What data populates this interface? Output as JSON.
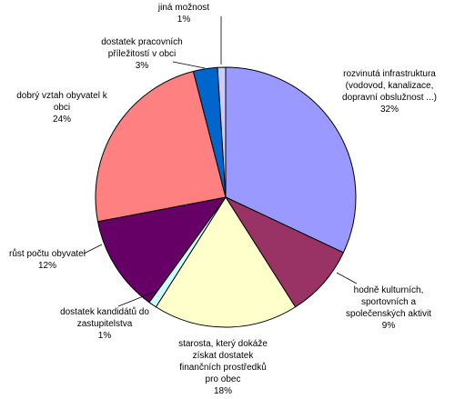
{
  "chart_data": {
    "type": "pie",
    "start_angle_deg": 0,
    "direction": "clockwise",
    "slices": [
      {
        "lines": [
          "rozvinutá infrastruktura",
          "(vodovod, kanalizace,",
          "dopravní obslužnost ...)"
        ],
        "pct_label": "32%",
        "value": 32,
        "color": "#9999ff"
      },
      {
        "lines": [
          "hodně kulturních,",
          "sportovních a",
          "společenských aktivit"
        ],
        "pct_label": "9%",
        "value": 9,
        "color": "#993366"
      },
      {
        "lines": [
          "starosta, který dokáže",
          "získat dostatek",
          "finančních prostředků",
          "pro obec"
        ],
        "pct_label": "18%",
        "value": 18,
        "color": "#ffffcc"
      },
      {
        "lines": [
          "dostatek kandidátů do",
          "zastupitelstva"
        ],
        "pct_label": "1%",
        "value": 1,
        "color": "#ccffff"
      },
      {
        "lines": [
          "růst počtu obyvatel"
        ],
        "pct_label": "12%",
        "value": 12,
        "color": "#660066"
      },
      {
        "lines": [
          "dobrý vztah obyvatel k",
          "obci"
        ],
        "pct_label": "24%",
        "value": 24,
        "color": "#ff8080"
      },
      {
        "lines": [
          "dostatek pracovních",
          "příležitostí v obci"
        ],
        "pct_label": "3%",
        "value": 3,
        "color": "#0066cc"
      },
      {
        "lines": [
          "jiná možnost"
        ],
        "pct_label": "1%",
        "value": 1,
        "color": "#ccccff"
      }
    ]
  }
}
